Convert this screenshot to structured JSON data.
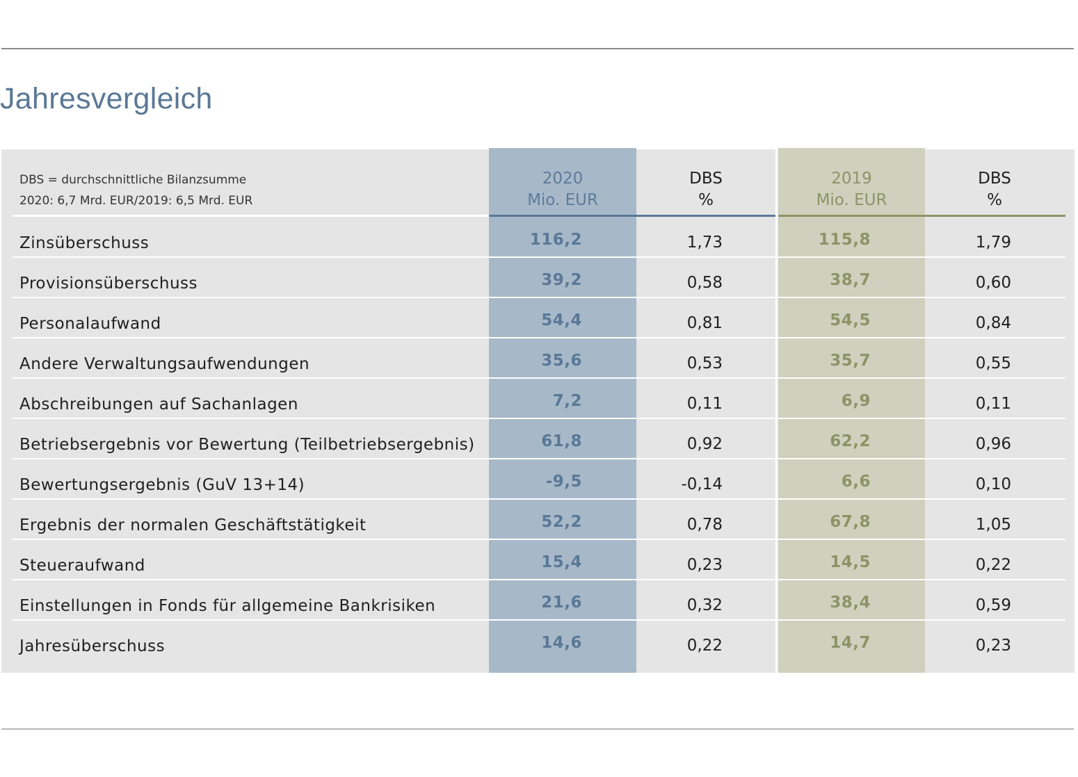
{
  "title": "Jahresvergleich",
  "note": {
    "line1": "DBS = durchschnittliche Bilanzsumme",
    "line2": "2020: 6,7 Mrd. EUR/2019: 6,5 Mrd. EUR"
  },
  "headers": {
    "y2020": {
      "year": "2020",
      "unit": "Mio. EUR"
    },
    "dbs2020": {
      "line1": "DBS",
      "line2": "%"
    },
    "y2019": {
      "year": "2019",
      "unit": "Mio. EUR"
    },
    "dbs2019": {
      "line1": "DBS",
      "line2": "%"
    }
  },
  "colors": {
    "blue": "#5a7896",
    "blue_fill": "#a7b9c9",
    "olive": "#8c9466",
    "olive_fill": "#cfd1be",
    "panel": "#e5e5e5"
  },
  "rows": [
    {
      "label": "Zinsüberschuss",
      "v2020": "116,2",
      "d2020": "1,73",
      "v2019": "115,8",
      "d2019": "1,79"
    },
    {
      "label": "Provisionsüberschuss",
      "v2020": "39,2",
      "d2020": "0,58",
      "v2019": "38,7",
      "d2019": "0,60"
    },
    {
      "label": "Personalaufwand",
      "v2020": "54,4",
      "d2020": "0,81",
      "v2019": "54,5",
      "d2019": "0,84"
    },
    {
      "label": "Andere Verwaltungsaufwendungen",
      "v2020": "35,6",
      "d2020": "0,53",
      "v2019": "35,7",
      "d2019": "0,55"
    },
    {
      "label": "Abschreibungen auf Sachanlagen",
      "v2020": "7,2",
      "d2020": "0,11",
      "v2019": "6,9",
      "d2019": "0,11"
    },
    {
      "label": "Betriebsergebnis vor Bewertung (Teilbetriebsergebnis)",
      "v2020": "61,8",
      "d2020": "0,92",
      "v2019": "62,2",
      "d2019": "0,96"
    },
    {
      "label": "Bewertungsergebnis (GuV 13+14)",
      "v2020": "-9,5",
      "d2020": "-0,14",
      "v2019": "6,6",
      "d2019": "0,10"
    },
    {
      "label": "Ergebnis der normalen Geschäftstätigkeit",
      "v2020": "52,2",
      "d2020": "0,78",
      "v2019": "67,8",
      "d2019": "1,05"
    },
    {
      "label": "Steueraufwand",
      "v2020": "15,4",
      "d2020": "0,23",
      "v2019": "14,5",
      "d2019": "0,22"
    },
    {
      "label": "Einstellungen in Fonds für allgemeine Bankrisiken",
      "v2020": "21,6",
      "d2020": "0,32",
      "v2019": "38,4",
      "d2019": "0,59"
    },
    {
      "label": "Jahresüberschuss",
      "v2020": "14,6",
      "d2020": "0,22",
      "v2019": "14,7",
      "d2019": "0,23"
    }
  ]
}
